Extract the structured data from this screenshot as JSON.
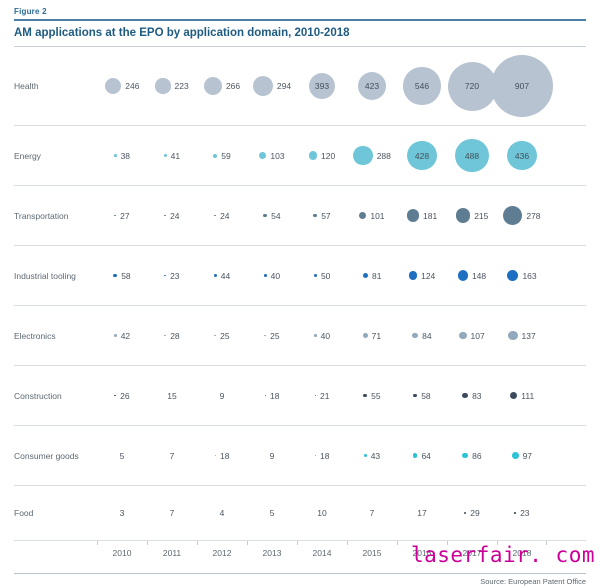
{
  "header": {
    "figure_label": "Figure 2",
    "title": "AM applications at the EPO by application domain, 2010-2018"
  },
  "chart_data": {
    "type": "scatter",
    "subtype": "bubble-matrix",
    "title": "AM applications at the EPO by application domain, 2010-2018",
    "x": [
      "2010",
      "2011",
      "2012",
      "2013",
      "2014",
      "2015",
      "2016",
      "2017",
      "2018"
    ],
    "xlabel": "",
    "ylabel": "",
    "legend_position": "none",
    "grid": "row-separators-only",
    "size_hint": "bubble diameter proportional to value; value printed inside bubble when large, beside it when small",
    "series": [
      {
        "name": "Health",
        "color": "#b7c3d1",
        "values": [
          246,
          223,
          266,
          294,
          393,
          423,
          546,
          720,
          907
        ]
      },
      {
        "name": "Energy",
        "color": "#6ec6d8",
        "values": [
          38,
          41,
          59,
          103,
          120,
          288,
          428,
          488,
          436
        ]
      },
      {
        "name": "Transportation",
        "color": "#5f7d92",
        "values": [
          27,
          24,
          24,
          54,
          57,
          101,
          181,
          215,
          278
        ]
      },
      {
        "name": "Industrial tooling",
        "color": "#1d6fc2",
        "values": [
          58,
          23,
          44,
          40,
          50,
          81,
          124,
          148,
          163
        ]
      },
      {
        "name": "Electronics",
        "color": "#92a8bb",
        "values": [
          42,
          28,
          25,
          25,
          40,
          71,
          84,
          107,
          137
        ]
      },
      {
        "name": "Construction",
        "color": "#3c4b5c",
        "values": [
          26,
          15,
          9,
          18,
          21,
          55,
          58,
          83,
          111
        ]
      },
      {
        "name": "Consumer goods",
        "color": "#2cc3d7",
        "values": [
          5,
          7,
          18,
          9,
          18,
          43,
          64,
          86,
          97
        ]
      },
      {
        "name": "Food",
        "color": "#3d4c5e",
        "values": [
          3,
          7,
          4,
          5,
          10,
          7,
          17,
          29,
          23
        ]
      }
    ]
  },
  "footer": {
    "source": "Source: European Patent Office"
  },
  "watermark": {
    "text": "laserfair. com",
    "color": "#cc0099"
  }
}
